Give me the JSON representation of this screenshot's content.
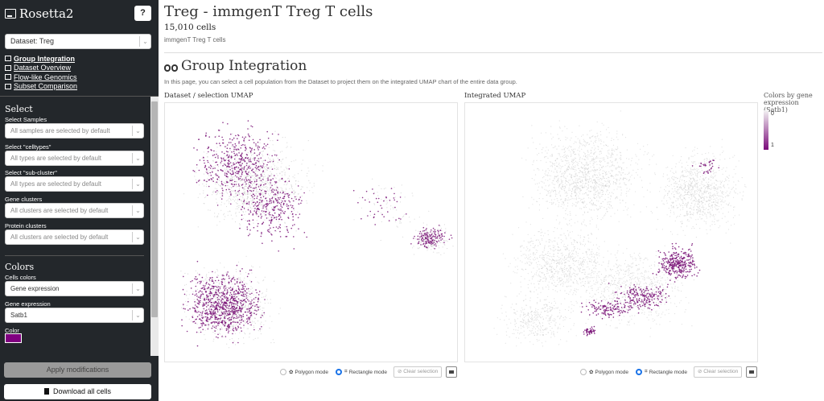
{
  "app": {
    "title": "Rosetta2",
    "help_label": "?"
  },
  "dataset_select": {
    "value": "Dataset: Treg"
  },
  "nav": [
    {
      "label": "Group Integration",
      "icon": "binoculars-icon"
    },
    {
      "label": "Dataset Overview",
      "icon": "table-icon"
    },
    {
      "label": "Flow-like Genomics",
      "icon": "chart-icon"
    },
    {
      "label": "Subset Comparison",
      "icon": "compare-icon"
    }
  ],
  "select_section": {
    "title": "Select",
    "fields": [
      {
        "label": "Select Samples",
        "placeholder": "All samples are selected by default"
      },
      {
        "label": "Select \"celltypes\"",
        "placeholder": "All types are selected by default"
      },
      {
        "label": "Select \"sub-cluster\"",
        "placeholder": "All types are selected by default"
      },
      {
        "label": "Gene clusters",
        "placeholder": "All clusters are selected by default"
      },
      {
        "label": "Protein clusters",
        "placeholder": "All clusters are selected by default"
      }
    ]
  },
  "colors_section": {
    "title": "Colors",
    "cells_colors_label": "Cells colors",
    "cells_colors_value": "Gene expression",
    "gene_expression_label": "Gene expression",
    "gene_expression_value": "Satb1",
    "color_label": "Color",
    "color_value": "#800080"
  },
  "buttons": {
    "apply": "Apply modifications",
    "download": "Download all cells"
  },
  "header": {
    "title": "Treg - immgenT Treg T cells",
    "cell_count": "15,010 cells",
    "subtitle": "immgenT Treg T cells"
  },
  "section": {
    "title": "Group Integration",
    "description": "In this page, you can select a cell population from the Dataset to project them on the integrated UMAP chart of the entire data group."
  },
  "plots": [
    {
      "label": "Dataset / selection UMAP",
      "polygon_label": "Polygon mode",
      "rectangle_label": "Rectangle mode",
      "clear_label": "Clear selection"
    },
    {
      "label": "Integrated UMAP",
      "polygon_label": "Polygon mode",
      "rectangle_label": "Rectangle mode",
      "clear_label": "Clear selection"
    }
  ],
  "legend": {
    "title": "Colors by gene expression (Satb1)",
    "min_label": "0",
    "max_label": "1"
  }
}
